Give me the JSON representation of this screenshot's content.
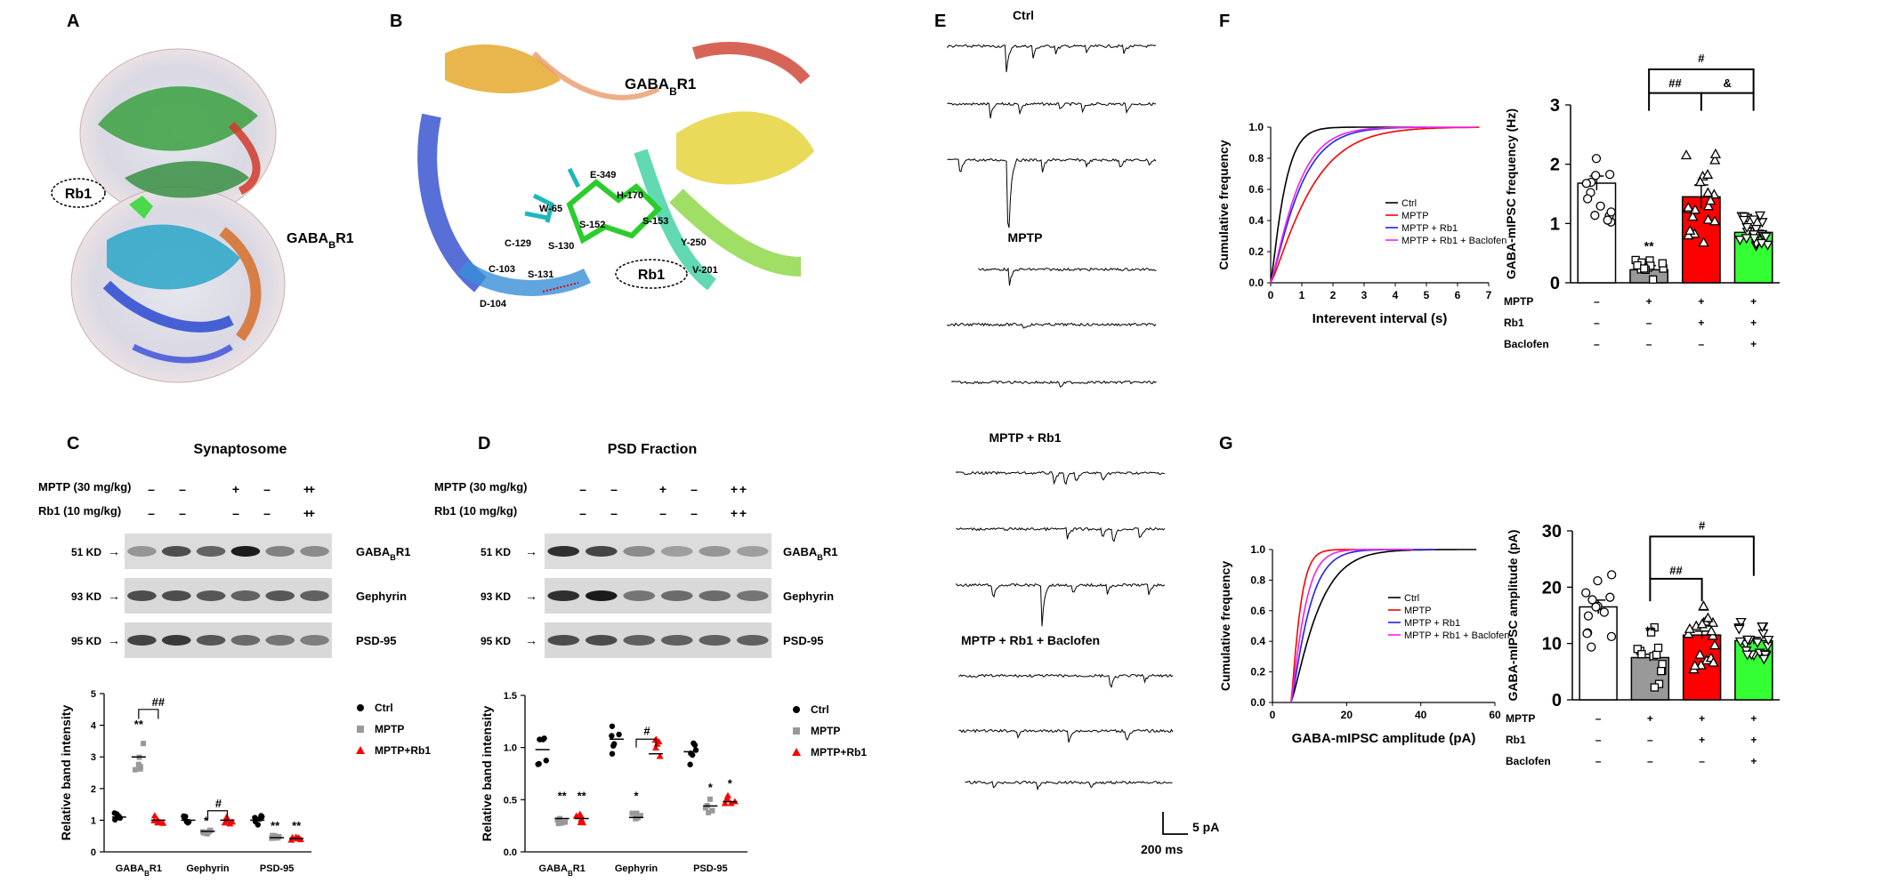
{
  "panels": {
    "A": {
      "letter": "A",
      "labels": [
        "Rb1",
        "GABABR1"
      ]
    },
    "B": {
      "letter": "B",
      "title": "GABABR1",
      "ligand": "Rb1",
      "residues": [
        "E-349",
        "H-170",
        "W-65",
        "S-152",
        "S-153",
        "C-129",
        "S-130",
        "Y-250",
        "C-103",
        "V-201",
        "S-131",
        "D-104"
      ]
    },
    "C": {
      "letter": "C",
      "title": "Synaptosome",
      "treatments": [
        {
          "label": "MPTP (30 mg/kg)",
          "signs": [
            "–",
            "–",
            "+",
            "–",
            "+",
            "+"
          ]
        },
        {
          "label": "Rb1  (10 mg/kg)",
          "signs": [
            "–",
            "–",
            "–",
            "–",
            "+",
            "+"
          ]
        }
      ],
      "markers": [
        "51 KD",
        "93 KD",
        "95 KD"
      ],
      "proteins": [
        "GABABR1",
        "Gephyrin",
        "PSD-95"
      ],
      "chart_data": {
        "type": "scatter",
        "ylabel": "Relative band intensity",
        "yticks": [
          0,
          1,
          2,
          3,
          4,
          5
        ],
        "ylim": [
          0,
          5
        ],
        "categories": [
          "GABABR1",
          "Gephyrin",
          "PSD-95"
        ],
        "series": [
          {
            "name": "Ctrl",
            "color": "#000000",
            "values": [
              1.1,
              1.0,
              1.0
            ]
          },
          {
            "name": "MPTP",
            "color": "#999999",
            "values": [
              3.0,
              0.65,
              0.45
            ]
          },
          {
            "name": "MPTP+Rb1",
            "color": "#ff0000",
            "values": [
              1.0,
              1.0,
              0.42
            ]
          }
        ],
        "annotations": {
          "stars": [
            "**",
            "*",
            "**",
            "**"
          ],
          "hash": [
            "##",
            "#"
          ]
        }
      }
    },
    "D": {
      "letter": "D",
      "title": "PSD Fraction",
      "treatments": [
        {
          "label": "MPTP (30 mg/kg)",
          "signs": [
            "–",
            "–",
            "+",
            "–",
            "+",
            "+"
          ]
        },
        {
          "label": "Rb1  (10 mg/kg)",
          "signs": [
            "–",
            "–",
            "–",
            "–",
            "+",
            "+"
          ]
        }
      ],
      "markers": [
        "51 KD",
        "93 KD",
        "95 KD"
      ],
      "proteins": [
        "GABABR1",
        "Gephyrin",
        "PSD-95"
      ],
      "chart_data": {
        "type": "scatter",
        "ylabel": "Relative band intensity",
        "yticks": [
          "0.0",
          "0.5",
          "1.0",
          "1.5"
        ],
        "ylim": [
          0,
          1.5
        ],
        "categories": [
          "GABABR1",
          "Gephyrin",
          "PSD-95"
        ],
        "series": [
          {
            "name": "Ctrl",
            "color": "#000000",
            "values": [
              0.98,
              1.08,
              0.96
            ]
          },
          {
            "name": "MPTP",
            "color": "#999999",
            "values": [
              0.32,
              0.33,
              0.44
            ]
          },
          {
            "name": "MPTP+Rb1",
            "color": "#ff0000",
            "values": [
              0.32,
              0.94,
              0.48
            ]
          }
        ],
        "annotations": {
          "stars": [
            "**",
            "**",
            "*",
            "*",
            "*"
          ],
          "hash": [
            "#"
          ]
        }
      }
    },
    "E": {
      "letter": "E",
      "groups": [
        "Ctrl",
        "MPTP",
        "MPTP + Rb1",
        "MPTP + Rb1 + Baclofen"
      ],
      "scale": {
        "y": "5 pA",
        "x": "200 ms"
      }
    },
    "F": {
      "letter": "F",
      "cdf": {
        "type": "line",
        "xlabel": "Interevent interval (s)",
        "ylabel": "Cumulative frequency",
        "xticks": [
          0,
          1,
          2,
          3,
          4,
          5,
          6,
          7
        ],
        "yticks": [
          "0.0",
          "0.2",
          "0.4",
          "0.6",
          "0.8",
          "1.0"
        ],
        "xlim": [
          0,
          7
        ],
        "ylim": [
          0,
          1
        ],
        "legend": [
          "Ctrl",
          "MPTP",
          "MPTP + Rb1",
          "MPTP + Rb1 + Baclofen"
        ],
        "colors": [
          "#000000",
          "#ff0000",
          "#2222ee",
          "#ee22ee"
        ],
        "xmax": [
          4.6,
          6.7,
          5.0,
          6.6
        ],
        "scales": [
          0.55,
          1.6,
          1.15,
          1.05
        ]
      },
      "bar": {
        "type": "bar",
        "ylabel": "GABA-mIPSC frequency (Hz)",
        "yticks": [
          0,
          1,
          2,
          3
        ],
        "ylim": [
          0,
          3
        ],
        "values": [
          1.68,
          0.22,
          1.45,
          0.85
        ],
        "errors": [
          0.12,
          0.07,
          0.2,
          0.08
        ],
        "colors": [
          "#ffffff",
          "#999999",
          "#ff0000",
          "#33ff33"
        ],
        "rows": [
          {
            "label": "MPTP",
            "signs": [
              "–",
              "+",
              "+",
              "+"
            ]
          },
          {
            "label": "Rb1",
            "signs": [
              "–",
              "–",
              "+",
              "+"
            ]
          },
          {
            "label": "Baclofen",
            "signs": [
              "–",
              "–",
              "–",
              "+"
            ]
          }
        ],
        "sig": {
          "stars": "**",
          "hash1": "##",
          "amp": "&",
          "hash2": "#"
        }
      }
    },
    "G": {
      "letter": "G",
      "cdf": {
        "type": "line",
        "xlabel": "GABA-mIPSC amplitude (pA)",
        "ylabel": "Cumulative frequency",
        "xticks": [
          0,
          20,
          40,
          60
        ],
        "yticks": [
          "0.0",
          "0.2",
          "0.4",
          "0.6",
          "0.8",
          "1.0"
        ],
        "xlim": [
          0,
          60
        ],
        "ylim": [
          0,
          1
        ],
        "legend": [
          "Ctrl",
          "MPTP",
          "MPTP + Rb1",
          "MPTP + Rb1 + Baclofen"
        ],
        "colors": [
          "#000000",
          "#ff0000",
          "#2222ee",
          "#ee22ee"
        ],
        "xmin": 5,
        "xmax": [
          55,
          30,
          44,
          38
        ],
        "scales": [
          9.0,
          3.0,
          6.0,
          4.5
        ]
      },
      "bar": {
        "type": "bar",
        "ylabel": "GABA-mIPSC amplitude (pA)",
        "yticks": [
          0,
          10,
          20,
          30
        ],
        "ylim": [
          0,
          30
        ],
        "values": [
          16.5,
          7.5,
          11.5,
          10.5
        ],
        "errors": [
          1.2,
          0.6,
          0.7,
          0.6
        ],
        "colors": [
          "#ffffff",
          "#999999",
          "#ff0000",
          "#33ff33"
        ],
        "rows": [
          {
            "label": "MPTP",
            "signs": [
              "–",
              "+",
              "+",
              "+"
            ]
          },
          {
            "label": "Rb1",
            "signs": [
              "–",
              "–",
              "+",
              "+"
            ]
          },
          {
            "label": "Baclofen",
            "signs": [
              "–",
              "–",
              "–",
              "+"
            ]
          }
        ],
        "sig": {
          "stars": "**",
          "hash1": "##",
          "hash2": "#"
        }
      }
    }
  }
}
